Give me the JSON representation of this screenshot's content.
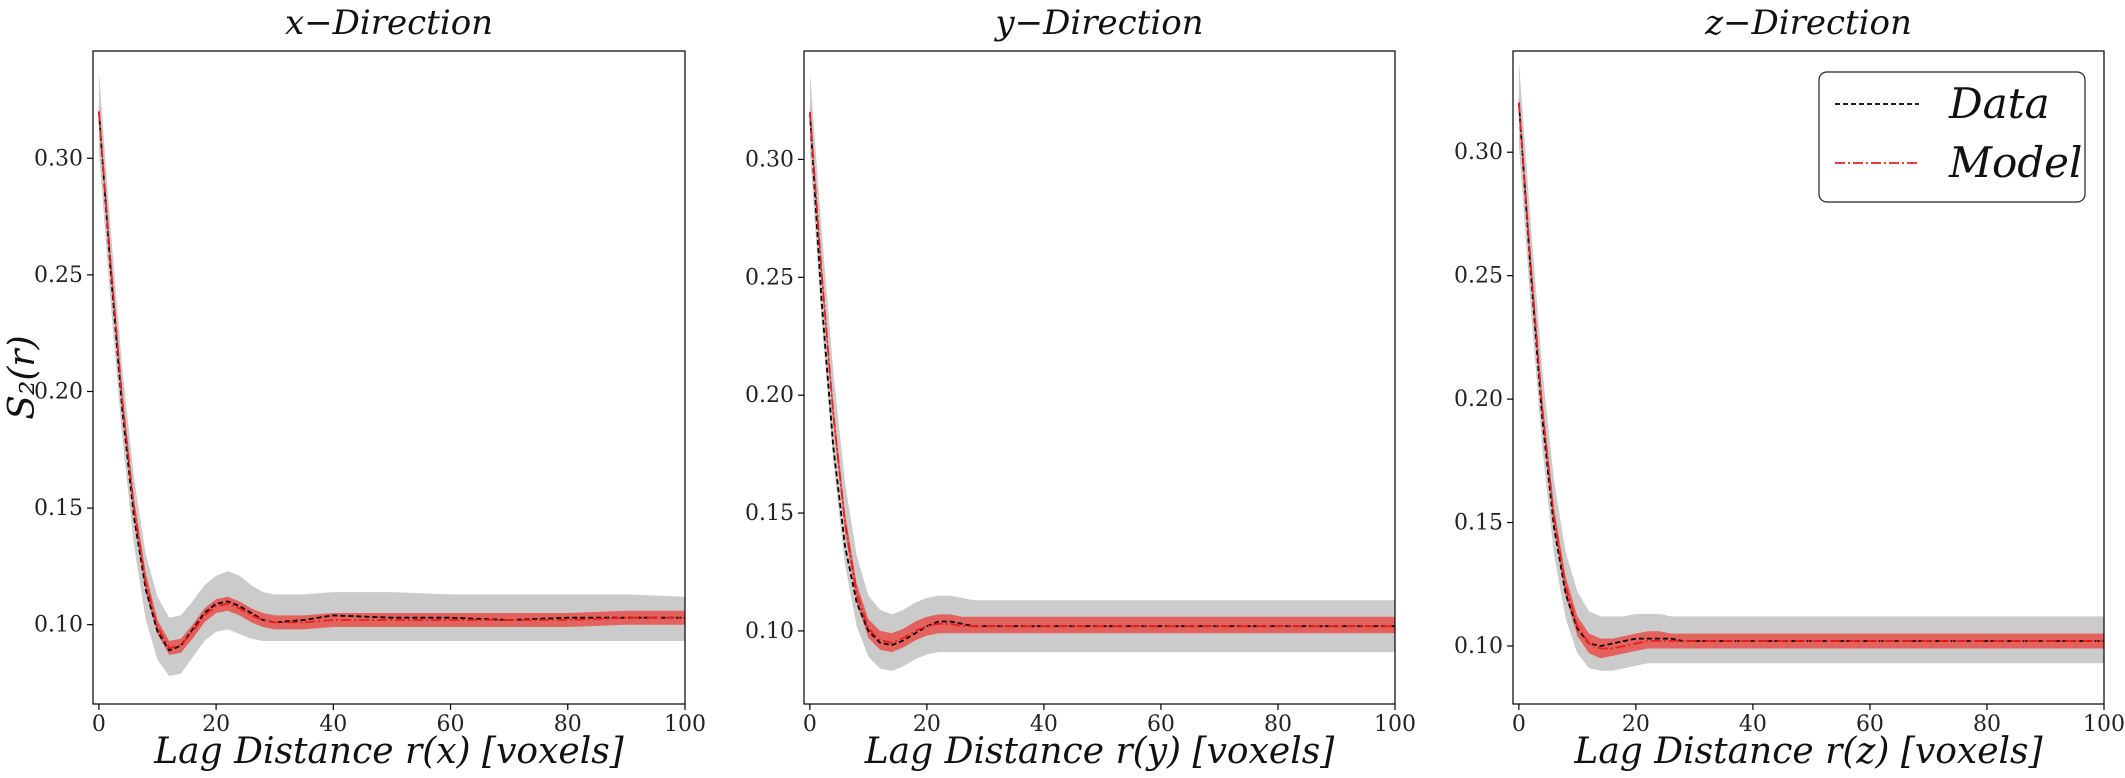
{
  "colors": {
    "data_line": "#000000",
    "model_line": "#e8201f",
    "data_band": "#bdbdbd",
    "model_band": "#e8504a"
  },
  "chart_data": [
    {
      "type": "line",
      "title": "x−Direction",
      "xlabel": "Lag Distance r(x) [voxels]",
      "ylabel": "S₂(r)",
      "xlim": [
        -1,
        100
      ],
      "ylim": [
        0.066,
        0.346
      ],
      "xticks": [
        0,
        20,
        40,
        60,
        80,
        100
      ],
      "yticks": [
        0.1,
        0.15,
        0.2,
        0.25,
        0.3
      ],
      "ytick_labels": [
        "0.10",
        "0.15",
        "0.20",
        "0.25",
        "0.30"
      ],
      "grid": false,
      "series": [
        {
          "name": "Data",
          "style": "dashed",
          "x": [
            0,
            2,
            4,
            6,
            8,
            10,
            12,
            14,
            16,
            18,
            20,
            22,
            24,
            26,
            28,
            30,
            35,
            40,
            50,
            60,
            70,
            80,
            90,
            100
          ],
          "y": [
            0.32,
            0.252,
            0.192,
            0.146,
            0.115,
            0.097,
            0.089,
            0.091,
            0.098,
            0.105,
            0.109,
            0.11,
            0.108,
            0.105,
            0.102,
            0.101,
            0.102,
            0.104,
            0.103,
            0.103,
            0.102,
            0.103,
            0.103,
            0.103
          ]
        },
        {
          "name": "Model",
          "style": "dashdot",
          "x": [
            0,
            2,
            4,
            6,
            8,
            10,
            12,
            14,
            16,
            18,
            20,
            22,
            24,
            26,
            28,
            30,
            35,
            40,
            50,
            60,
            70,
            80,
            90,
            100
          ],
          "y": [
            0.32,
            0.255,
            0.196,
            0.15,
            0.118,
            0.099,
            0.09,
            0.091,
            0.097,
            0.104,
            0.108,
            0.109,
            0.107,
            0.104,
            0.102,
            0.101,
            0.101,
            0.102,
            0.102,
            0.102,
            0.102,
            0.102,
            0.103,
            0.103
          ]
        }
      ],
      "band_grey": {
        "x": [
          0,
          2,
          4,
          6,
          8,
          10,
          12,
          14,
          16,
          18,
          20,
          22,
          24,
          26,
          28,
          30,
          35,
          40,
          50,
          60,
          70,
          80,
          90,
          100
        ],
        "lower": [
          0.303,
          0.238,
          0.18,
          0.134,
          0.102,
          0.085,
          0.078,
          0.079,
          0.086,
          0.093,
          0.097,
          0.098,
          0.096,
          0.094,
          0.093,
          0.093,
          0.093,
          0.093,
          0.093,
          0.093,
          0.093,
          0.093,
          0.093,
          0.093
        ],
        "upper": [
          0.337,
          0.27,
          0.21,
          0.163,
          0.13,
          0.112,
          0.103,
          0.104,
          0.11,
          0.117,
          0.121,
          0.123,
          0.121,
          0.117,
          0.114,
          0.113,
          0.113,
          0.114,
          0.114,
          0.113,
          0.113,
          0.113,
          0.113,
          0.112
        ]
      },
      "band_red": {
        "x": [
          0,
          2,
          4,
          6,
          8,
          10,
          12,
          14,
          16,
          18,
          20,
          22,
          24,
          26,
          28,
          30,
          35,
          40,
          50,
          60,
          70,
          80,
          90,
          100
        ],
        "lower": [
          0.317,
          0.251,
          0.192,
          0.146,
          0.114,
          0.096,
          0.087,
          0.088,
          0.094,
          0.101,
          0.105,
          0.106,
          0.104,
          0.101,
          0.099,
          0.098,
          0.098,
          0.099,
          0.099,
          0.099,
          0.099,
          0.099,
          0.1,
          0.1
        ],
        "upper": [
          0.323,
          0.259,
          0.2,
          0.154,
          0.122,
          0.102,
          0.093,
          0.094,
          0.1,
          0.107,
          0.111,
          0.112,
          0.11,
          0.107,
          0.105,
          0.104,
          0.104,
          0.105,
          0.105,
          0.105,
          0.105,
          0.105,
          0.106,
          0.106
        ]
      }
    },
    {
      "type": "line",
      "title": "y−Direction",
      "xlabel": "Lag Distance r(y) [voxels]",
      "ylabel": "",
      "xlim": [
        -1,
        100
      ],
      "ylim": [
        0.069,
        0.346
      ],
      "xticks": [
        0,
        20,
        40,
        60,
        80,
        100
      ],
      "yticks": [
        0.1,
        0.15,
        0.2,
        0.25,
        0.3
      ],
      "ytick_labels": [
        "0.10",
        "0.15",
        "0.20",
        "0.25",
        "0.30"
      ],
      "grid": false,
      "series": [
        {
          "name": "Data",
          "style": "dashed",
          "x": [
            0,
            2,
            4,
            6,
            8,
            10,
            12,
            14,
            16,
            18,
            20,
            22,
            24,
            26,
            28,
            30,
            35,
            40,
            50,
            60,
            70,
            80,
            90,
            100
          ],
          "y": [
            0.32,
            0.24,
            0.178,
            0.136,
            0.112,
            0.1,
            0.095,
            0.094,
            0.096,
            0.099,
            0.102,
            0.104,
            0.104,
            0.103,
            0.102,
            0.102,
            0.102,
            0.102,
            0.102,
            0.102,
            0.102,
            0.102,
            0.102,
            0.102
          ]
        },
        {
          "name": "Model",
          "style": "dashdot",
          "x": [
            0,
            2,
            4,
            6,
            8,
            10,
            12,
            14,
            16,
            18,
            20,
            22,
            24,
            26,
            28,
            30,
            35,
            40,
            50,
            60,
            70,
            80,
            90,
            100
          ],
          "y": [
            0.32,
            0.252,
            0.192,
            0.146,
            0.116,
            0.101,
            0.096,
            0.095,
            0.097,
            0.1,
            0.102,
            0.103,
            0.103,
            0.102,
            0.102,
            0.102,
            0.102,
            0.102,
            0.102,
            0.102,
            0.102,
            0.102,
            0.102,
            0.102
          ]
        }
      ],
      "band_grey": {
        "x": [
          0,
          2,
          4,
          6,
          8,
          10,
          12,
          14,
          16,
          18,
          20,
          22,
          24,
          26,
          28,
          30,
          35,
          40,
          50,
          60,
          70,
          80,
          90,
          100
        ],
        "lower": [
          0.303,
          0.232,
          0.172,
          0.128,
          0.102,
          0.089,
          0.084,
          0.083,
          0.085,
          0.088,
          0.09,
          0.091,
          0.091,
          0.091,
          0.091,
          0.091,
          0.091,
          0.091,
          0.091,
          0.091,
          0.091,
          0.091,
          0.091,
          0.091
        ],
        "upper": [
          0.337,
          0.27,
          0.21,
          0.163,
          0.132,
          0.115,
          0.109,
          0.107,
          0.109,
          0.112,
          0.114,
          0.115,
          0.115,
          0.114,
          0.113,
          0.113,
          0.113,
          0.113,
          0.113,
          0.113,
          0.113,
          0.113,
          0.113,
          0.113
        ]
      },
      "band_red": {
        "x": [
          0,
          2,
          4,
          6,
          8,
          10,
          12,
          14,
          16,
          18,
          20,
          22,
          24,
          26,
          28,
          30,
          35,
          40,
          50,
          60,
          70,
          80,
          90,
          100
        ],
        "lower": [
          0.317,
          0.248,
          0.188,
          0.142,
          0.112,
          0.097,
          0.092,
          0.091,
          0.093,
          0.096,
          0.098,
          0.099,
          0.099,
          0.099,
          0.099,
          0.099,
          0.099,
          0.099,
          0.099,
          0.099,
          0.099,
          0.099,
          0.099,
          0.099
        ],
        "upper": [
          0.323,
          0.256,
          0.196,
          0.15,
          0.12,
          0.105,
          0.1,
          0.099,
          0.101,
          0.104,
          0.106,
          0.107,
          0.107,
          0.106,
          0.106,
          0.106,
          0.106,
          0.106,
          0.106,
          0.106,
          0.106,
          0.106,
          0.106,
          0.106
        ]
      }
    },
    {
      "type": "line",
      "title": "z−Direction",
      "xlabel": "Lag Distance r(z) [voxels]",
      "ylabel": "",
      "xlim": [
        -1,
        100
      ],
      "ylim": [
        0.0765,
        0.341
      ],
      "xticks": [
        0,
        20,
        40,
        60,
        80,
        100
      ],
      "yticks": [
        0.1,
        0.15,
        0.2,
        0.25,
        0.3
      ],
      "ytick_labels": [
        "0.10",
        "0.15",
        "0.20",
        "0.25",
        "0.30"
      ],
      "grid": false,
      "legend": {
        "placement": "top-right",
        "entries": [
          "Data",
          "Model"
        ]
      },
      "series": [
        {
          "name": "Data",
          "style": "dashed",
          "x": [
            0,
            2,
            4,
            6,
            8,
            10,
            12,
            14,
            16,
            18,
            20,
            22,
            24,
            26,
            28,
            30,
            35,
            40,
            50,
            60,
            70,
            80,
            90,
            100
          ],
          "y": [
            0.32,
            0.252,
            0.192,
            0.148,
            0.121,
            0.107,
            0.101,
            0.1,
            0.101,
            0.102,
            0.103,
            0.103,
            0.103,
            0.103,
            0.102,
            0.102,
            0.102,
            0.102,
            0.102,
            0.102,
            0.102,
            0.102,
            0.102,
            0.102
          ]
        },
        {
          "name": "Model",
          "style": "dashdot",
          "x": [
            0,
            2,
            4,
            6,
            8,
            10,
            12,
            14,
            16,
            18,
            20,
            22,
            24,
            26,
            28,
            30,
            35,
            40,
            50,
            60,
            70,
            80,
            90,
            100
          ],
          "y": [
            0.32,
            0.255,
            0.196,
            0.152,
            0.124,
            0.108,
            0.101,
            0.099,
            0.099,
            0.1,
            0.101,
            0.102,
            0.102,
            0.102,
            0.102,
            0.102,
            0.102,
            0.102,
            0.102,
            0.102,
            0.102,
            0.102,
            0.102,
            0.102
          ]
        }
      ],
      "band_grey": {
        "x": [
          0,
          2,
          4,
          6,
          8,
          10,
          12,
          14,
          16,
          18,
          20,
          22,
          24,
          26,
          28,
          30,
          35,
          40,
          50,
          60,
          70,
          80,
          90,
          100
        ],
        "lower": [
          0.303,
          0.238,
          0.18,
          0.137,
          0.111,
          0.097,
          0.091,
          0.09,
          0.09,
          0.091,
          0.092,
          0.093,
          0.093,
          0.093,
          0.093,
          0.093,
          0.093,
          0.093,
          0.093,
          0.093,
          0.093,
          0.093,
          0.093,
          0.093
        ],
        "upper": [
          0.337,
          0.272,
          0.212,
          0.167,
          0.138,
          0.122,
          0.114,
          0.112,
          0.112,
          0.112,
          0.113,
          0.113,
          0.113,
          0.112,
          0.112,
          0.112,
          0.112,
          0.112,
          0.112,
          0.112,
          0.112,
          0.112,
          0.112,
          0.112
        ]
      },
      "band_red": {
        "x": [
          0,
          2,
          4,
          6,
          8,
          10,
          12,
          14,
          16,
          18,
          20,
          22,
          24,
          26,
          28,
          30,
          35,
          40,
          50,
          60,
          70,
          80,
          90,
          100
        ],
        "lower": [
          0.317,
          0.251,
          0.192,
          0.148,
          0.12,
          0.104,
          0.097,
          0.095,
          0.096,
          0.097,
          0.098,
          0.099,
          0.099,
          0.099,
          0.099,
          0.099,
          0.099,
          0.099,
          0.099,
          0.099,
          0.099,
          0.099,
          0.099,
          0.099
        ],
        "upper": [
          0.323,
          0.259,
          0.2,
          0.156,
          0.128,
          0.112,
          0.105,
          0.103,
          0.103,
          0.104,
          0.105,
          0.106,
          0.106,
          0.105,
          0.105,
          0.105,
          0.105,
          0.105,
          0.105,
          0.105,
          0.105,
          0.105,
          0.105,
          0.105
        ]
      }
    }
  ]
}
